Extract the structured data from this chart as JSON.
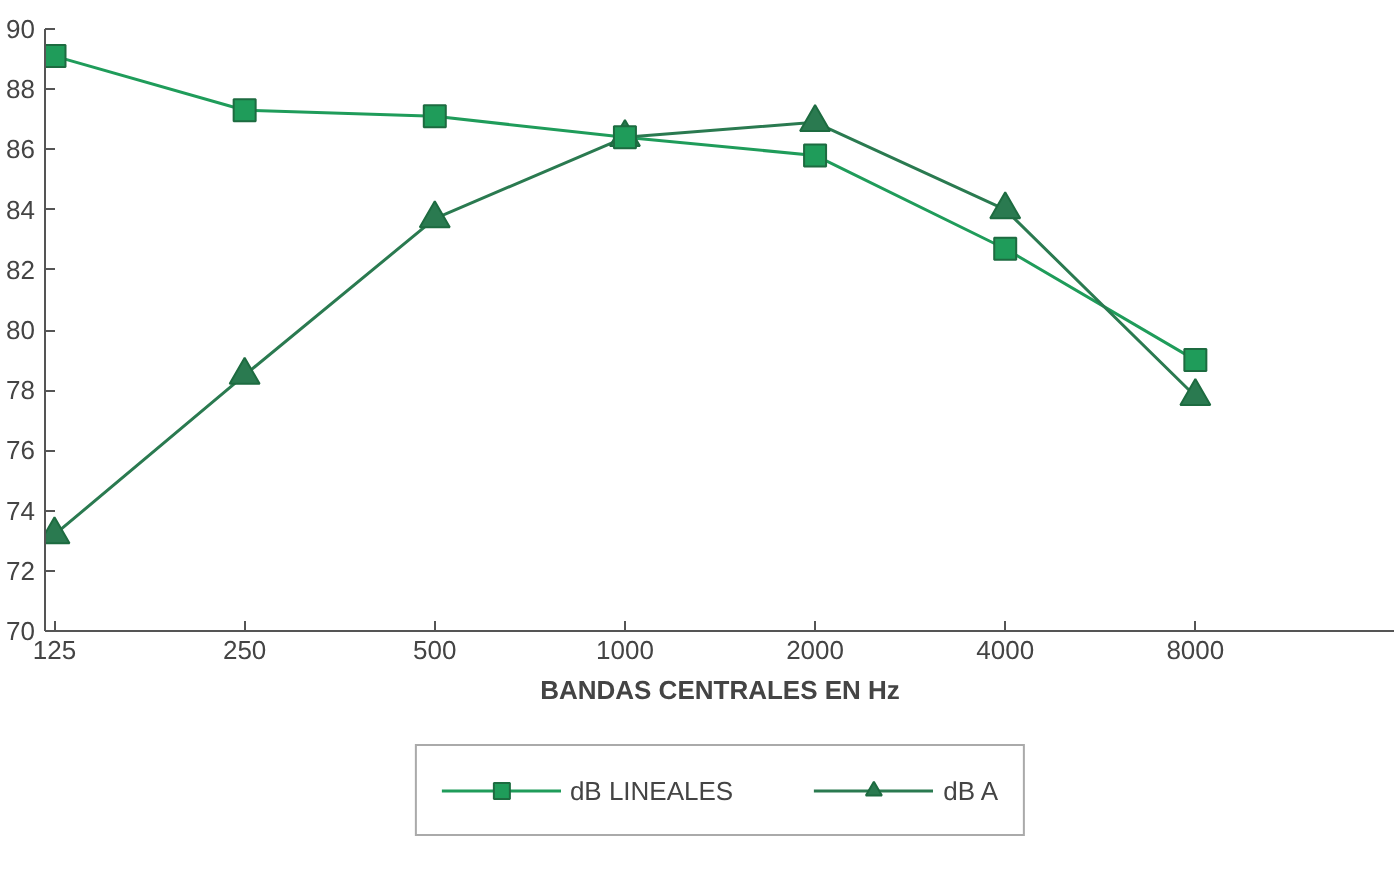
{
  "chart_data": {
    "type": "line",
    "xlabel": "BANDAS CENTRALES EN Hz",
    "categories": [
      "125",
      "250",
      "500",
      "1000",
      "2000",
      "4000",
      "8000"
    ],
    "series": [
      {
        "name": "dB LINEALES",
        "color": "#1f9c5a",
        "marker": "square",
        "values": [
          89.1,
          87.3,
          87.1,
          86.4,
          85.8,
          82.7,
          79.0
        ]
      },
      {
        "name": "dB A",
        "color": "#2a7a50",
        "marker": "triangle",
        "values": [
          73.2,
          78.5,
          83.7,
          86.4,
          86.9,
          84.0,
          77.8
        ]
      }
    ],
    "ylim": [
      70,
      90
    ],
    "yticks": [
      70,
      72,
      74,
      76,
      78,
      80,
      82,
      84,
      86,
      88,
      90
    ],
    "grid": false,
    "legend": "bottom",
    "line_style": "solid"
  }
}
